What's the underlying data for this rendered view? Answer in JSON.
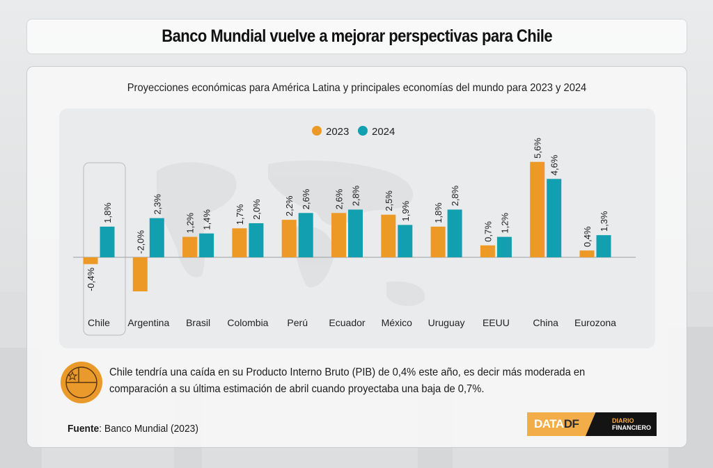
{
  "header": {
    "title": "Banco Mundial vuelve a mejorar perspectivas para Chile"
  },
  "subtitle": "Proyecciones económicas para América Latina y principales economías del mundo para 2023 y 2024",
  "colors": {
    "series_2023": "#ec9a25",
    "series_2024": "#129fb0",
    "accent": "#e99a2a"
  },
  "chart_data": {
    "type": "bar",
    "title": "Proyecciones económicas para América Latina y principales economías del mundo para 2023 y 2024",
    "xlabel": "",
    "ylabel": "",
    "categories": [
      "Chile",
      "Argentina",
      "Brasil",
      "Colombia",
      "Perú",
      "Ecuador",
      "México",
      "Uruguay",
      "EEUU",
      "China",
      "Eurozona"
    ],
    "series": [
      {
        "name": "2023",
        "values": [
          -0.4,
          -2.0,
          1.2,
          1.7,
          2.2,
          2.6,
          2.5,
          1.8,
          0.7,
          5.6,
          0.4
        ],
        "labels": [
          "-0,4%",
          "-2,0%",
          "1,2%",
          "1,7%",
          "2,2%",
          "2,6%",
          "2,5%",
          "1,8%",
          "0,7%",
          "5,6%",
          "0,4%"
        ]
      },
      {
        "name": "2024",
        "values": [
          1.8,
          2.3,
          1.4,
          2.0,
          2.6,
          2.8,
          1.9,
          2.8,
          1.2,
          4.6,
          1.3
        ],
        "labels": [
          "1,8%",
          "2,3%",
          "1,4%",
          "2,0%",
          "2,6%",
          "2,8%",
          "1,9%",
          "2,8%",
          "1,2%",
          "4,6%",
          "1,3%"
        ]
      }
    ],
    "highlighted_category": "Chile",
    "legend": {
      "position": "top-center",
      "entries": [
        "2023",
        "2024"
      ]
    },
    "ylim": [
      -2.5,
      6.0
    ],
    "grid": false
  },
  "note": {
    "icon": "chile-flag-icon",
    "text": "Chile tendría una caída en su Producto Interno Bruto (PIB) de 0,4% este año, es decir más moderada en comparación a su última estimación de abril cuando proyectaba una baja de 0,7%."
  },
  "source": {
    "label": "Fuente",
    "value": ": Banco Mundial (2023)"
  },
  "logo": {
    "data_text": "DATA",
    "df_text": "DF",
    "line1": "DIARIO",
    "line2": "FINANCIERO"
  }
}
